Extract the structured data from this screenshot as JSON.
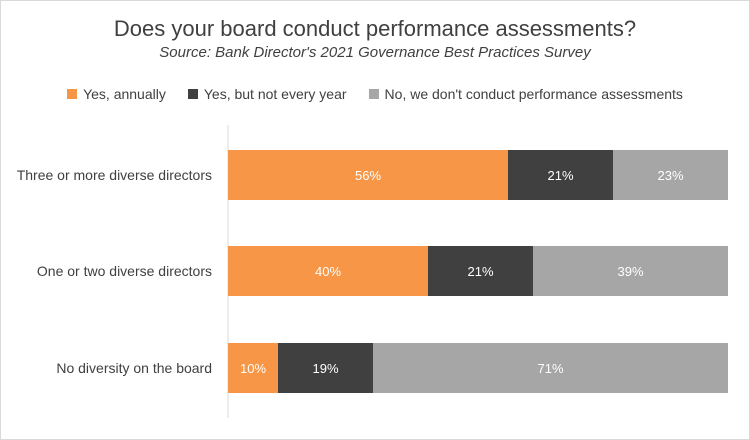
{
  "chart_data": {
    "type": "bar",
    "orientation": "horizontal",
    "stacked": true,
    "title": "Does your board conduct performance assessments?",
    "subtitle": "Source: Bank Director's 2021 Governance Best Practices Survey",
    "categories": [
      "Three or more diverse directors",
      "One or two diverse directors",
      "No diversity on the board"
    ],
    "series": [
      {
        "name": "Yes, annually",
        "values": [
          56,
          40,
          10
        ],
        "labels": [
          "56%",
          "40%",
          "10%"
        ],
        "color": "#F79646"
      },
      {
        "name": "Yes, but not every year",
        "values": [
          21,
          21,
          19
        ],
        "labels": [
          "21%",
          "21%",
          "19%"
        ],
        "color": "#404040"
      },
      {
        "name": "No, we don't conduct performance assessments",
        "values": [
          23,
          39,
          71
        ],
        "labels": [
          "23%",
          "39%",
          "71%"
        ],
        "color": "#A6A6A6"
      }
    ],
    "legend_position": "top",
    "grid": false
  }
}
